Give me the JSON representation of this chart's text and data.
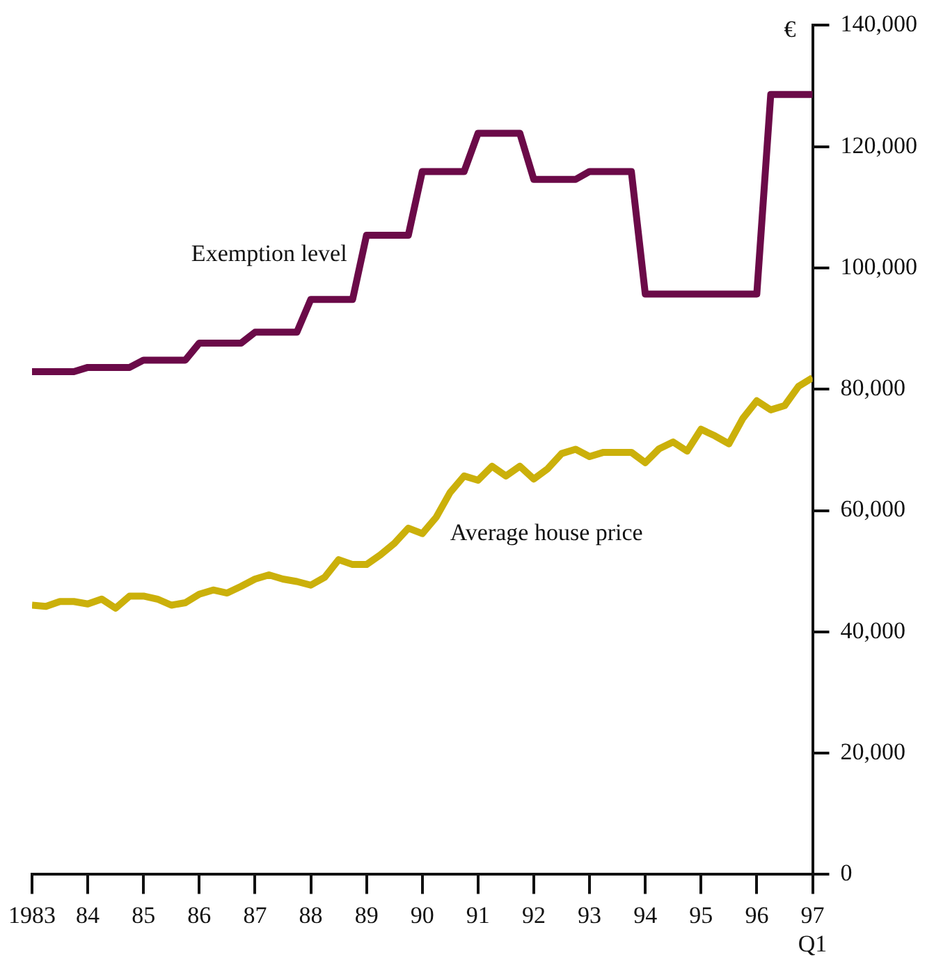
{
  "chart_data": {
    "type": "line",
    "ylabel": "€",
    "x": [
      1983,
      1983.25,
      1983.5,
      1983.75,
      1984,
      1984.25,
      1984.5,
      1984.75,
      1985,
      1985.25,
      1985.5,
      1985.75,
      1986,
      1986.25,
      1986.5,
      1986.75,
      1987,
      1987.25,
      1987.5,
      1987.75,
      1988,
      1988.25,
      1988.5,
      1988.75,
      1989,
      1989.25,
      1989.5,
      1989.75,
      1990,
      1990.25,
      1990.5,
      1990.75,
      1991,
      1991.25,
      1991.5,
      1991.75,
      1992,
      1992.25,
      1992.5,
      1992.75,
      1993,
      1993.25,
      1993.5,
      1993.75,
      1994,
      1994.25,
      1994.5,
      1994.75,
      1995,
      1995.25,
      1995.5,
      1995.75,
      1996,
      1996.25,
      1996.5,
      1996.75,
      1997
    ],
    "series": [
      {
        "name": "Exemption level",
        "color": "#6b0a48",
        "values": [
          82900,
          82900,
          82900,
          82900,
          83600,
          83600,
          83600,
          83600,
          84800,
          84800,
          84800,
          84800,
          87600,
          87600,
          87600,
          87600,
          89400,
          89400,
          89400,
          89400,
          94800,
          94800,
          94800,
          94800,
          105400,
          105400,
          105400,
          105400,
          115900,
          115900,
          115900,
          115900,
          122200,
          122200,
          122200,
          122200,
          114600,
          114600,
          114600,
          114600,
          115900,
          115900,
          115900,
          115900,
          95700,
          95700,
          95700,
          95700,
          95700,
          95700,
          95700,
          95700,
          95700,
          128600,
          128600,
          128600,
          128600
        ]
      },
      {
        "name": "Average house price",
        "color": "#cbb00a",
        "values": [
          44400,
          44200,
          45000,
          45000,
          44600,
          45400,
          43900,
          45900,
          45900,
          45400,
          44400,
          44800,
          46200,
          46900,
          46400,
          47500,
          48700,
          49400,
          48700,
          48300,
          47700,
          49000,
          51900,
          51100,
          51100,
          52700,
          54600,
          57100,
          56200,
          58900,
          63000,
          65700,
          65000,
          67300,
          65700,
          67300,
          65200,
          66900,
          69400,
          70100,
          68900,
          69600,
          69600,
          69600,
          67900,
          70200,
          71300,
          69800,
          73400,
          72300,
          71000,
          75200,
          78100,
          76600,
          77300,
          80500,
          81900
        ]
      }
    ],
    "xlim": [
      1983,
      1997
    ],
    "xticks": [
      {
        "value": 1983,
        "label": "1983"
      },
      {
        "value": 1984,
        "label": "84"
      },
      {
        "value": 1985,
        "label": "85"
      },
      {
        "value": 1986,
        "label": "86"
      },
      {
        "value": 1987,
        "label": "87"
      },
      {
        "value": 1988,
        "label": "88"
      },
      {
        "value": 1989,
        "label": "89"
      },
      {
        "value": 1990,
        "label": "90"
      },
      {
        "value": 1991,
        "label": "91"
      },
      {
        "value": 1992,
        "label": "92"
      },
      {
        "value": 1993,
        "label": "93"
      },
      {
        "value": 1994,
        "label": "94"
      },
      {
        "value": 1995,
        "label": "95"
      },
      {
        "value": 1996,
        "label": "96"
      },
      {
        "value": 1997,
        "label": "97\nQ1"
      }
    ],
    "ylim": [
      0,
      140000
    ],
    "yticks": [
      0,
      {
        "value": 20000,
        "label": "20,000"
      },
      {
        "value": 40000,
        "label": "40,000"
      },
      {
        "value": 60000,
        "label": "60,000"
      },
      {
        "value": 80000,
        "label": "80,000"
      },
      {
        "value": 100000,
        "label": "100,000"
      },
      {
        "value": 120000,
        "label": "120,000"
      },
      {
        "value": 140000,
        "label": "140,000"
      }
    ],
    "grid": false,
    "legend": false,
    "marker": "none",
    "line_style": "solid"
  }
}
